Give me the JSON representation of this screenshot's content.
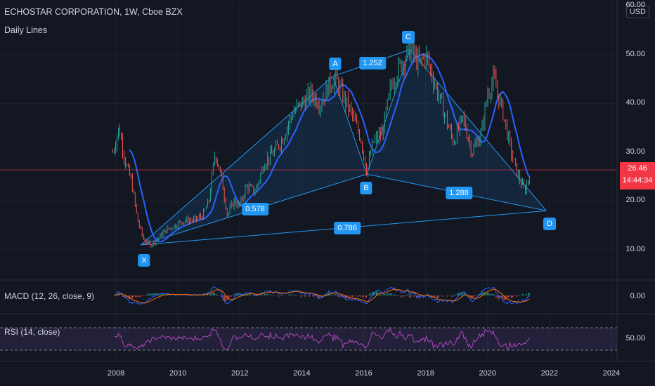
{
  "header": {
    "title": "ECHOSTAR CORPORATION, 1W, Cboe BZX",
    "subtitle": "Daily Lines"
  },
  "currency_button": "USD",
  "price": {
    "value": "26.46",
    "countdown": "14:44:34",
    "color": "#f23645"
  },
  "pattern_points": {
    "x": "X",
    "a": "A",
    "b": "B",
    "c": "C",
    "d": "D"
  },
  "ratios": {
    "xb": "0.578",
    "ac": "1.252",
    "bd": "1.288",
    "xd": "0.786"
  },
  "indicators": {
    "macd_label": "MACD (12, 26, close, 9)",
    "macd_value": "0.00",
    "rsi_label": "RSI (14, close)",
    "rsi_value": "50.00"
  },
  "chart_data": {
    "type": "line",
    "title": "ECHOSTAR CORPORATION, 1W, Cboe BZX",
    "x_ticks": [
      "2008",
      "2010",
      "2012",
      "2014",
      "2016",
      "2018",
      "2020",
      "2022",
      "2024"
    ],
    "y_ticks": [
      "60.00",
      "50.00",
      "40.00",
      "30.00",
      "20.00",
      "10.00"
    ],
    "ylim": [
      5,
      60
    ],
    "harmonic_points": [
      {
        "label": "X",
        "x": 2008.8,
        "y": 11
      },
      {
        "label": "A",
        "x": 2015.0,
        "y": 45.5
      },
      {
        "label": "B",
        "x": 2016.1,
        "y": 25.5
      },
      {
        "label": "C",
        "x": 2017.5,
        "y": 51
      },
      {
        "label": "D",
        "x": 2021.9,
        "y": 18
      }
    ],
    "series": [
      {
        "values_x": [
          2007.9,
          2008.1,
          2008.3,
          2008.5,
          2008.7,
          2008.9,
          2009.1,
          2009.3,
          2009.6,
          2009.9,
          2010.2,
          2010.5,
          2010.8,
          2011.0,
          2011.2,
          2011.4,
          2011.6,
          2011.8,
          2012.0,
          2012.2,
          2012.5,
          2012.8,
          2013.1,
          2013.4,
          2013.7,
          2014.0,
          2014.3,
          2014.6,
          2014.9,
          2015.1,
          2015.3,
          2015.6,
          2015.9,
          2016.1,
          2016.3,
          2016.6,
          2016.9,
          2017.2,
          2017.5,
          2017.8,
          2018.0,
          2018.3,
          2018.6,
          2018.9,
          2019.2,
          2019.5,
          2019.8,
          2020.0,
          2020.2,
          2020.5,
          2020.8,
          2021.0,
          2021.2,
          2021.4
        ],
        "values_y": [
          30,
          35,
          28,
          24,
          16,
          12,
          11,
          12,
          14,
          15,
          16,
          16,
          17,
          20,
          30,
          25,
          17,
          20,
          19,
          23,
          22,
          28,
          30,
          33,
          38,
          40,
          42,
          40,
          44,
          45,
          42,
          38,
          33,
          26,
          32,
          34,
          44,
          48,
          51,
          48,
          50,
          44,
          38,
          32,
          37,
          30,
          34,
          42,
          45,
          38,
          29,
          25,
          22,
          26.46
        ]
      }
    ]
  }
}
